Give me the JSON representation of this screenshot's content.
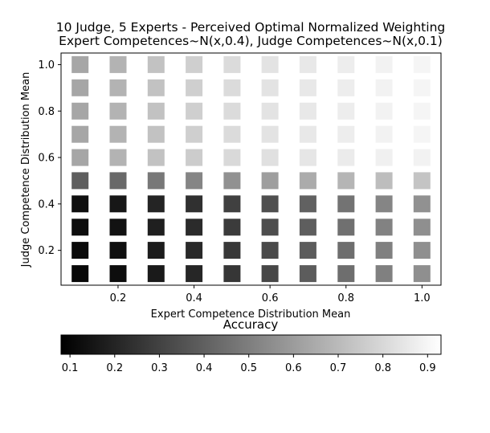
{
  "chart_data": {
    "type": "heatmap",
    "title": "10 Judge, 5 Experts - Perceived Optimal Normalized Weighting",
    "subtitle": "Expert Competences~N(x,0.4), Judge Competences~N(x,0.1)",
    "xlabel": "Expert Competence Distribution Mean",
    "ylabel": "Judge Competence Distribution Mean",
    "x": [
      0.1,
      0.2,
      0.3,
      0.4,
      0.5,
      0.6,
      0.7,
      0.8,
      0.9,
      1.0
    ],
    "y": [
      0.1,
      0.2,
      0.3,
      0.4,
      0.5,
      0.6,
      0.7,
      0.8,
      0.9,
      1.0
    ],
    "xticks": [
      0.2,
      0.4,
      0.6,
      0.8,
      1.0
    ],
    "yticks": [
      0.2,
      0.4,
      0.6,
      0.8,
      1.0
    ],
    "xtick_labels": [
      "0.2",
      "0.4",
      "0.6",
      "0.8",
      "1.0"
    ],
    "ytick_labels": [
      "0.2",
      "0.4",
      "0.6",
      "0.8",
      "1.0"
    ],
    "xlim": [
      0.05,
      1.05
    ],
    "ylim": [
      0.05,
      1.05
    ],
    "values": [
      [
        0.03,
        0.05,
        0.1,
        0.15,
        0.21,
        0.28,
        0.36,
        0.43,
        0.5,
        0.56
      ],
      [
        0.04,
        0.06,
        0.11,
        0.16,
        0.22,
        0.29,
        0.36,
        0.43,
        0.5,
        0.56
      ],
      [
        0.05,
        0.07,
        0.12,
        0.17,
        0.23,
        0.3,
        0.37,
        0.44,
        0.51,
        0.56
      ],
      [
        0.06,
        0.09,
        0.14,
        0.19,
        0.25,
        0.31,
        0.38,
        0.45,
        0.52,
        0.57
      ],
      [
        0.37,
        0.41,
        0.47,
        0.52,
        0.57,
        0.62,
        0.67,
        0.71,
        0.74,
        0.77
      ],
      [
        0.65,
        0.7,
        0.76,
        0.8,
        0.85,
        0.88,
        0.9,
        0.92,
        0.94,
        0.95
      ],
      [
        0.65,
        0.7,
        0.76,
        0.81,
        0.86,
        0.89,
        0.91,
        0.93,
        0.95,
        0.96
      ],
      [
        0.65,
        0.7,
        0.76,
        0.81,
        0.86,
        0.89,
        0.91,
        0.93,
        0.95,
        0.96
      ],
      [
        0.65,
        0.7,
        0.76,
        0.81,
        0.86,
        0.89,
        0.91,
        0.93,
        0.95,
        0.96
      ],
      [
        0.65,
        0.7,
        0.76,
        0.81,
        0.86,
        0.89,
        0.91,
        0.93,
        0.95,
        0.96
      ]
    ],
    "colorbar": {
      "label": "Accuracy",
      "colormap": "gray",
      "range": [
        0.08,
        0.93
      ],
      "ticks": [
        0.1,
        0.2,
        0.3,
        0.4,
        0.5,
        0.6,
        0.7,
        0.8,
        0.9
      ],
      "tick_labels": [
        "0.1",
        "0.2",
        "0.3",
        "0.4",
        "0.5",
        "0.6",
        "0.7",
        "0.8",
        "0.9"
      ],
      "orientation": "horizontal"
    },
    "grid": false
  }
}
